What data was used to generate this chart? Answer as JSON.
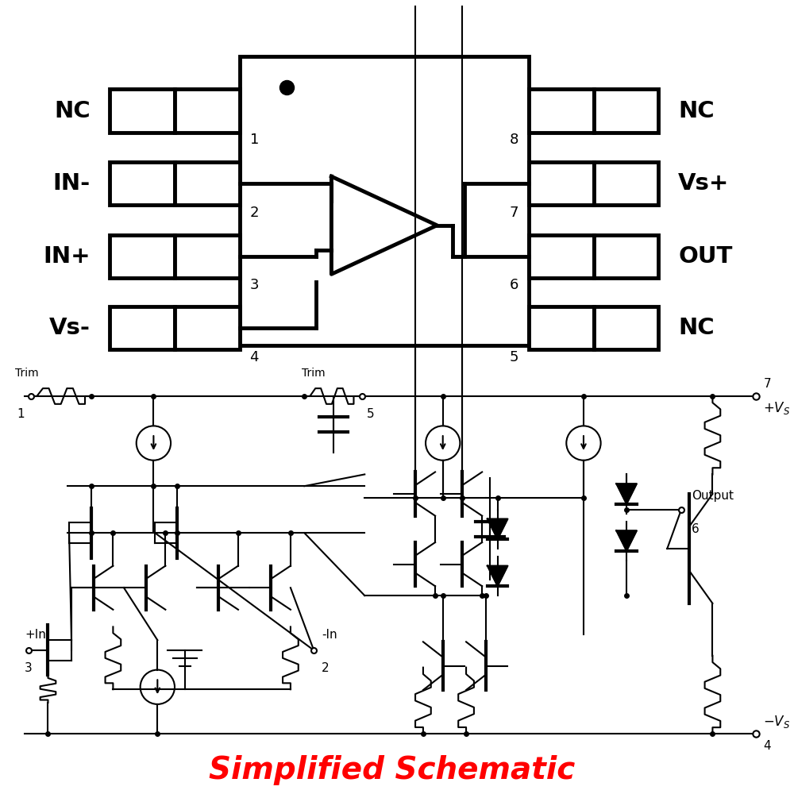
{
  "bg_color": "#ffffff",
  "line_color": "#000000",
  "red_color": "#ff0000",
  "title": "Simplified Schematic",
  "title_fontsize": 28,
  "pin_labels_left": [
    "NC",
    "IN-",
    "IN+",
    "Vs-"
  ],
  "pin_labels_right": [
    "NC",
    "Vs+",
    "OUT",
    "NC"
  ],
  "pin_numbers_left": [
    "1",
    "2",
    "3",
    "4"
  ],
  "pin_numbers_right": [
    "8",
    "7",
    "6",
    "5"
  ]
}
